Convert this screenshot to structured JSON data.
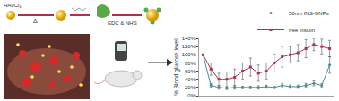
{
  "chart_data": {
    "type": "line",
    "y_label": "% Blood glucose level",
    "annotations": [
      "HAuCl₄",
      "Δ",
      "EDC & NHS"
    ],
    "categories": [
      null,
      null,
      null,
      null,
      null,
      null,
      null,
      null,
      null,
      null,
      null,
      null,
      null,
      null,
      null,
      null,
      null
    ],
    "series": [
      {
        "name": "50nm INS-GNPs",
        "color": "#4a8c99",
        "marker": "circle",
        "line_style": "solid",
        "values": [
          100,
          25,
          20,
          18,
          20,
          20,
          20,
          20,
          22,
          20,
          25,
          22,
          22,
          25,
          30,
          25,
          75
        ],
        "error": [
          0,
          5,
          4,
          3,
          4,
          3,
          3,
          4,
          4,
          3,
          5,
          4,
          4,
          5,
          6,
          5,
          20
        ]
      },
      {
        "name": "free insulin",
        "color": "#b0304e",
        "marker": "square",
        "line_style": "solid",
        "values": [
          100,
          65,
          40,
          40,
          45,
          60,
          70,
          55,
          60,
          80,
          95,
          100,
          105,
          115,
          125,
          120,
          115
        ],
        "error": [
          0,
          15,
          15,
          18,
          20,
          20,
          22,
          20,
          20,
          22,
          25,
          20,
          20,
          22,
          15,
          18,
          20
        ]
      }
    ],
    "ylim": [
      0,
      140
    ],
    "yticks": [
      {
        "value": 0,
        "label": "0%"
      },
      {
        "value": 20,
        "label": "20%"
      },
      {
        "value": 40,
        "label": "40%"
      },
      {
        "value": 60,
        "label": "60%"
      },
      {
        "value": 80,
        "label": "80%"
      },
      {
        "value": 100,
        "label": "100%"
      },
      {
        "value": 120,
        "label": "120%"
      },
      {
        "value": 140,
        "label": "140%"
      }
    ],
    "grid": false,
    "legend": "top right",
    "tick_labels": "y"
  }
}
